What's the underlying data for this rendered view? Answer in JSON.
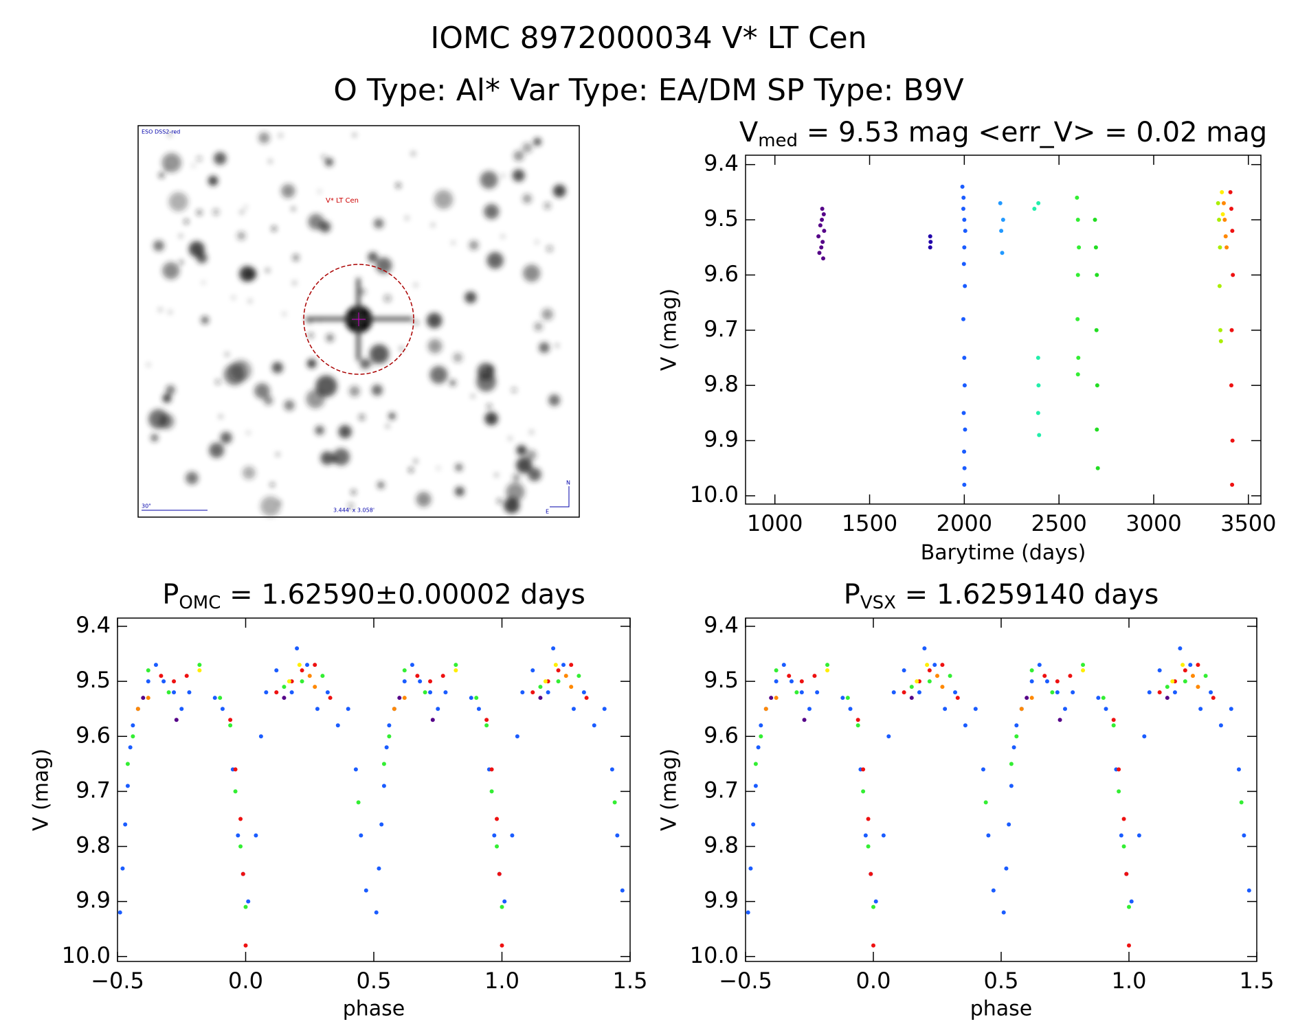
{
  "title": "IOMC 8972000034   V* LT Cen",
  "subtitle": "O Type: Al*  Var Type: EA/DM  SP Type: B9V",
  "image": {
    "survey": "ESO DSS2-red",
    "target": "V* LT Cen",
    "scale": "30\"",
    "fov": "3.444' x 3.058'",
    "north": "N",
    "east": "E"
  },
  "chart_data": [
    {
      "type": "scatter",
      "title": [
        "V",
        "med",
        " = 9.53 mag <err_V> = 0.02 mag"
      ],
      "xlabel": "Barytime (days)",
      "ylabel": "V (mag)",
      "xlim": [
        845,
        3566
      ],
      "ylim": [
        10.015,
        9.383
      ],
      "xticks": [
        1000,
        1500,
        2000,
        2500,
        3000,
        3500
      ],
      "yticks": [
        9.4,
        9.5,
        9.6,
        9.7,
        9.8,
        9.9,
        {
          "value": 10,
          "label": "10.0"
        }
      ],
      "series": [
        {
          "color": "#550088",
          "x": [
            1230,
            1240,
            1245,
            1250,
            1255,
            1260,
            1248,
            1252,
            1235,
            1258
          ],
          "y": [
            9.53,
            9.51,
            9.55,
            9.48,
            9.57,
            9.52,
            9.5,
            9.54,
            9.56,
            9.49
          ]
        },
        {
          "color": "#2200aa",
          "x": [
            1820,
            1820,
            1822
          ],
          "y": [
            9.53,
            9.55,
            9.54
          ]
        },
        {
          "color": "#1a5cff",
          "x": [
            1990,
            1995,
            2000,
            2005,
            2000,
            1998,
            2003,
            1995,
            2000,
            2002,
            1997,
            2004,
            1999,
            2001,
            2000,
            1996
          ],
          "y": [
            9.44,
            9.48,
            9.5,
            9.52,
            9.55,
            9.58,
            9.62,
            9.68,
            9.75,
            9.8,
            9.85,
            9.88,
            9.92,
            9.95,
            9.98,
            9.46
          ]
        },
        {
          "color": "#2299ff",
          "x": [
            2190,
            2195,
            2200,
            2205
          ],
          "y": [
            9.47,
            9.52,
            9.56,
            9.5
          ]
        },
        {
          "color": "#22eeaa",
          "x": [
            2370,
            2390,
            2392,
            2390,
            2395,
            2391
          ],
          "y": [
            9.48,
            9.75,
            9.8,
            9.85,
            9.89,
            9.47
          ]
        },
        {
          "color": "#33ee33",
          "x": [
            2595,
            2600,
            2605,
            2600,
            2598,
            2602,
            2600
          ],
          "y": [
            9.46,
            9.5,
            9.55,
            9.6,
            9.68,
            9.75,
            9.78
          ]
        },
        {
          "color": "#22dd22",
          "x": [
            2690,
            2695,
            2700,
            2698,
            2702,
            2700,
            2705
          ],
          "y": [
            9.5,
            9.55,
            9.6,
            9.7,
            9.8,
            9.88,
            9.95
          ]
        },
        {
          "color": "#aaee00",
          "x": [
            3340,
            3345,
            3350,
            3348,
            3352,
            3355
          ],
          "y": [
            9.47,
            9.5,
            9.55,
            9.62,
            9.7,
            9.72
          ]
        },
        {
          "color": "#ffee00",
          "x": [
            3360,
            3365
          ],
          "y": [
            9.45,
            9.49
          ]
        },
        {
          "color": "#ff8800",
          "x": [
            3370,
            3375,
            3380,
            3385
          ],
          "y": [
            9.47,
            9.5,
            9.53,
            9.55
          ]
        },
        {
          "color": "#ee1111",
          "x": [
            3405,
            3410,
            3415,
            3418,
            3412,
            3410,
            3416,
            3414
          ],
          "y": [
            9.45,
            9.48,
            9.52,
            9.6,
            9.7,
            9.8,
            9.9,
            9.98
          ]
        }
      ]
    },
    {
      "type": "scatter",
      "title": [
        "P",
        "OMC",
        " = 1.62590±0.00002 days"
      ],
      "xlabel": "phase",
      "ylabel": "V (mag)",
      "xlim": [
        -0.5,
        1.5
      ],
      "ylim": [
        10.009,
        9.385
      ],
      "xticks": [
        {
          "value": -0.5,
          "label": "−0.5"
        },
        {
          "value": 0,
          "label": "0.0"
        },
        0.5,
        {
          "value": 1,
          "label": "1.0"
        },
        1.5
      ],
      "yticks": [
        9.4,
        9.5,
        9.6,
        9.7,
        9.8,
        9.9,
        {
          "value": 10,
          "label": "10.0"
        }
      ],
      "series": [
        {
          "color": "#1a5cff",
          "x": [
            -0.49,
            -0.48,
            -0.47,
            -0.46,
            -0.45,
            -0.44,
            -0.42,
            -0.38,
            -0.35,
            -0.32,
            -0.28,
            -0.25,
            -0.22,
            -0.12,
            -0.09,
            -0.05,
            -0.03,
            -0.01,
            0.01,
            0.04,
            0.06,
            0.08,
            0.12,
            0.18,
            0.2,
            0.24,
            0.28,
            0.32,
            0.36,
            0.4,
            0.43,
            0.45,
            0.47,
            0.51,
            0.52,
            0.53,
            0.54,
            0.55,
            0.56,
            0.58,
            0.62,
            0.65,
            0.68,
            0.72,
            0.75,
            0.78,
            0.88,
            0.91,
            0.95,
            0.97,
            0.99,
            1.01,
            1.04,
            1.06,
            1.08,
            1.12,
            1.18,
            1.2,
            1.24,
            1.28,
            1.32,
            1.36,
            1.4,
            1.43,
            1.45,
            1.47
          ],
          "y": [
            9.92,
            9.84,
            9.76,
            9.69,
            9.62,
            9.58,
            9.55,
            9.5,
            9.47,
            9.5,
            9.52,
            9.55,
            9.52,
            9.53,
            9.55,
            9.66,
            9.78,
            9.85,
            9.9,
            9.78,
            9.6,
            9.52,
            9.48,
            9.52,
            9.44,
            9.47,
            9.55,
            9.52,
            9.58,
            9.55,
            9.66,
            9.78,
            9.88,
            9.92,
            9.84,
            9.76,
            9.69,
            9.62,
            9.58,
            9.55,
            9.5,
            9.47,
            9.5,
            9.52,
            9.55,
            9.52,
            9.53,
            9.55,
            9.66,
            9.78,
            9.85,
            9.9,
            9.78,
            9.6,
            9.52,
            9.48,
            9.52,
            9.44,
            9.47,
            9.55,
            9.52,
            9.58,
            9.55,
            9.66,
            9.78,
            9.88
          ]
        },
        {
          "color": "#33ee33",
          "x": [
            -0.46,
            -0.44,
            -0.38,
            -0.3,
            -0.18,
            -0.1,
            -0.06,
            -0.04,
            -0.02,
            0.0,
            0.15,
            0.22,
            0.3,
            0.44,
            0.54,
            0.56,
            0.62,
            0.7,
            0.82,
            0.9,
            0.94,
            0.96,
            0.98,
            1.0,
            1.15,
            1.22,
            1.3,
            1.44
          ],
          "y": [
            9.65,
            9.6,
            9.48,
            9.52,
            9.47,
            9.53,
            9.58,
            9.7,
            9.8,
            9.91,
            9.51,
            9.5,
            9.49,
            9.72,
            9.65,
            9.6,
            9.48,
            9.52,
            9.47,
            9.53,
            9.58,
            9.7,
            9.8,
            9.91,
            9.51,
            9.5,
            9.49,
            9.72
          ]
        },
        {
          "color": "#ee1111",
          "x": [
            -0.33,
            -0.28,
            -0.23,
            -0.06,
            -0.04,
            -0.02,
            -0.01,
            0.0,
            0.12,
            0.18,
            0.22,
            0.27,
            0.33,
            0.67,
            0.72,
            0.77,
            0.94,
            0.96,
            0.98,
            0.99,
            1.0,
            1.12,
            1.18,
            1.22,
            1.27,
            1.33
          ],
          "y": [
            9.49,
            9.5,
            9.49,
            9.57,
            9.66,
            9.75,
            9.85,
            9.98,
            9.52,
            9.5,
            9.48,
            9.47,
            9.53,
            9.49,
            9.5,
            9.49,
            9.57,
            9.66,
            9.75,
            9.85,
            9.98,
            9.52,
            9.5,
            9.48,
            9.47,
            9.53
          ]
        },
        {
          "color": "#ff8800",
          "x": [
            -0.42,
            -0.38,
            0.25,
            0.27,
            0.58,
            0.62,
            1.25,
            1.27
          ],
          "y": [
            9.55,
            9.53,
            9.49,
            9.51,
            9.55,
            9.53,
            9.49,
            9.51
          ]
        },
        {
          "color": "#ffee00",
          "x": [
            -0.18,
            0.17,
            0.21,
            0.82,
            1.17,
            1.21
          ],
          "y": [
            9.48,
            9.5,
            9.47,
            9.48,
            9.5,
            9.47
          ]
        },
        {
          "color": "#550088",
          "x": [
            -0.4,
            -0.27,
            0.15,
            0.6,
            0.73,
            1.15
          ],
          "y": [
            9.53,
            9.57,
            9.53,
            9.53,
            9.57,
            9.53
          ]
        }
      ]
    },
    {
      "type": "scatter",
      "title": [
        "P",
        "VSX",
        " = 1.6259140 days"
      ],
      "xlabel": "phase",
      "ylabel": "V (mag)",
      "xlim": [
        -0.5,
        1.5
      ],
      "ylim": [
        10.009,
        9.385
      ],
      "xticks": [
        {
          "value": -0.5,
          "label": "−0.5"
        },
        {
          "value": 0,
          "label": "0.0"
        },
        0.5,
        {
          "value": 1,
          "label": "1.0"
        },
        1.5
      ],
      "yticks": [
        9.4,
        9.5,
        9.6,
        9.7,
        9.8,
        9.9,
        {
          "value": 10,
          "label": "10.0"
        }
      ],
      "series": [
        {
          "color": "#1a5cff",
          "x": [
            -0.49,
            -0.48,
            -0.47,
            -0.46,
            -0.45,
            -0.44,
            -0.42,
            -0.38,
            -0.35,
            -0.32,
            -0.28,
            -0.25,
            -0.22,
            -0.12,
            -0.09,
            -0.05,
            -0.03,
            -0.01,
            0.01,
            0.04,
            0.06,
            0.08,
            0.12,
            0.18,
            0.2,
            0.24,
            0.28,
            0.32,
            0.36,
            0.4,
            0.43,
            0.45,
            0.47,
            0.51,
            0.52,
            0.53,
            0.54,
            0.55,
            0.56,
            0.58,
            0.62,
            0.65,
            0.68,
            0.72,
            0.75,
            0.78,
            0.88,
            0.91,
            0.95,
            0.97,
            0.99,
            1.01,
            1.04,
            1.06,
            1.08,
            1.12,
            1.18,
            1.2,
            1.24,
            1.28,
            1.32,
            1.36,
            1.4,
            1.43,
            1.45,
            1.47
          ],
          "y": [
            9.92,
            9.84,
            9.76,
            9.69,
            9.62,
            9.58,
            9.55,
            9.5,
            9.47,
            9.5,
            9.52,
            9.55,
            9.52,
            9.53,
            9.55,
            9.66,
            9.78,
            9.85,
            9.9,
            9.78,
            9.6,
            9.52,
            9.48,
            9.52,
            9.44,
            9.47,
            9.55,
            9.52,
            9.58,
            9.55,
            9.66,
            9.78,
            9.88,
            9.92,
            9.84,
            9.76,
            9.69,
            9.62,
            9.58,
            9.55,
            9.5,
            9.47,
            9.5,
            9.52,
            9.55,
            9.52,
            9.53,
            9.55,
            9.66,
            9.78,
            9.85,
            9.9,
            9.78,
            9.6,
            9.52,
            9.48,
            9.52,
            9.44,
            9.47,
            9.55,
            9.52,
            9.58,
            9.55,
            9.66,
            9.78,
            9.88
          ]
        },
        {
          "color": "#33ee33",
          "x": [
            -0.46,
            -0.44,
            -0.38,
            -0.3,
            -0.18,
            -0.1,
            -0.06,
            -0.04,
            -0.02,
            0.0,
            0.15,
            0.22,
            0.3,
            0.44,
            0.54,
            0.56,
            0.62,
            0.7,
            0.82,
            0.9,
            0.94,
            0.96,
            0.98,
            1.0,
            1.15,
            1.22,
            1.3,
            1.44
          ],
          "y": [
            9.65,
            9.6,
            9.48,
            9.52,
            9.47,
            9.53,
            9.58,
            9.7,
            9.8,
            9.91,
            9.51,
            9.5,
            9.49,
            9.72,
            9.65,
            9.6,
            9.48,
            9.52,
            9.47,
            9.53,
            9.58,
            9.7,
            9.8,
            9.91,
            9.51,
            9.5,
            9.49,
            9.72
          ]
        },
        {
          "color": "#ee1111",
          "x": [
            -0.33,
            -0.28,
            -0.23,
            -0.06,
            -0.04,
            -0.02,
            -0.01,
            0.0,
            0.12,
            0.18,
            0.22,
            0.27,
            0.33,
            0.67,
            0.72,
            0.77,
            0.94,
            0.96,
            0.98,
            0.99,
            1.0,
            1.12,
            1.18,
            1.22,
            1.27,
            1.33
          ],
          "y": [
            9.49,
            9.5,
            9.49,
            9.57,
            9.66,
            9.75,
            9.85,
            9.98,
            9.52,
            9.5,
            9.48,
            9.47,
            9.53,
            9.49,
            9.5,
            9.49,
            9.57,
            9.66,
            9.75,
            9.85,
            9.98,
            9.52,
            9.5,
            9.48,
            9.47,
            9.53
          ]
        },
        {
          "color": "#ff8800",
          "x": [
            -0.42,
            -0.38,
            0.25,
            0.27,
            0.58,
            0.62,
            1.25,
            1.27
          ],
          "y": [
            9.55,
            9.53,
            9.49,
            9.51,
            9.55,
            9.53,
            9.49,
            9.51
          ]
        },
        {
          "color": "#ffee00",
          "x": [
            -0.18,
            0.17,
            0.21,
            0.82,
            1.17,
            1.21
          ],
          "y": [
            9.48,
            9.5,
            9.47,
            9.48,
            9.5,
            9.47
          ]
        },
        {
          "color": "#550088",
          "x": [
            -0.4,
            -0.27,
            0.15,
            0.6,
            0.73,
            1.15
          ],
          "y": [
            9.53,
            9.57,
            9.53,
            9.53,
            9.57,
            9.53
          ]
        }
      ]
    }
  ]
}
